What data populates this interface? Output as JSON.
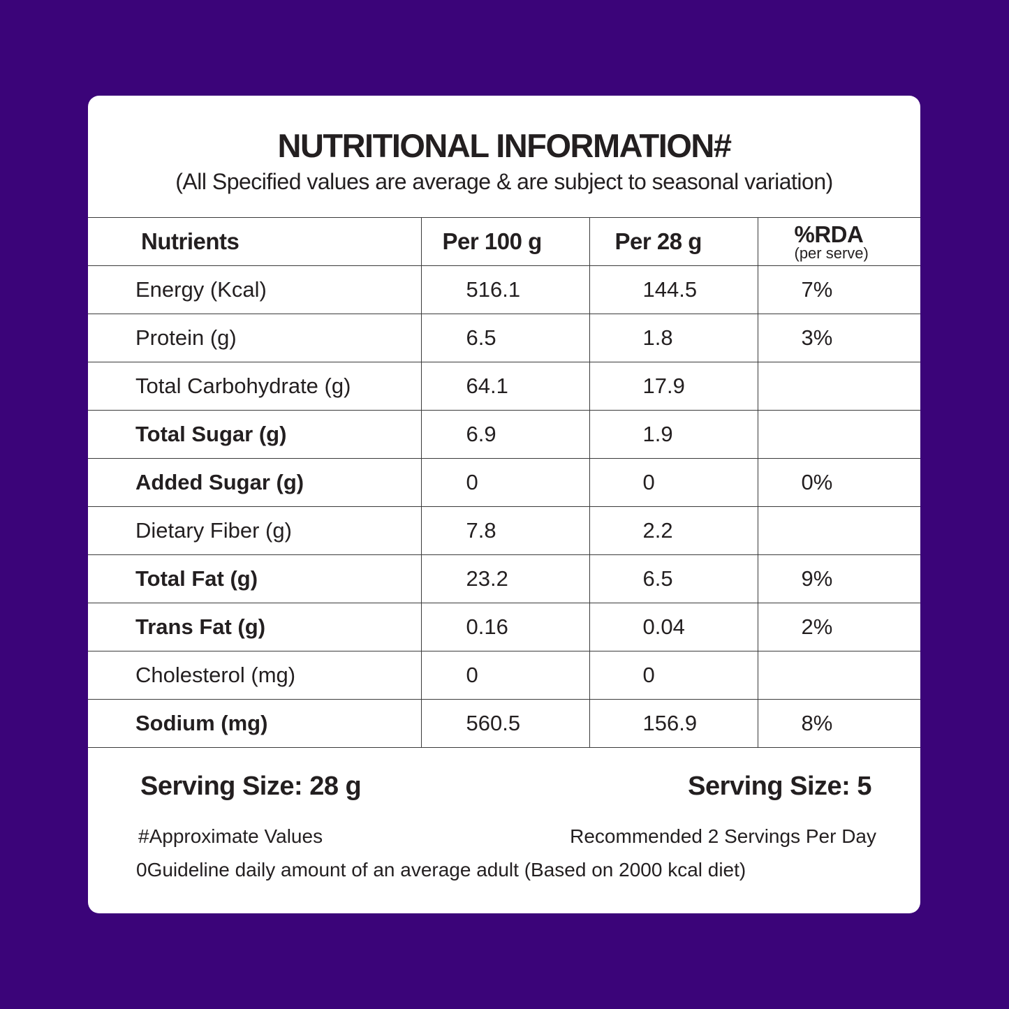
{
  "header": {
    "title": "NUTRITIONAL INFORMATION#",
    "subtitle": "(All Specified values are average & are subject to seasonal variation)"
  },
  "table": {
    "headers": {
      "nutrients": "Nutrients",
      "per100": "Per 100 g",
      "per28": "Per 28 g",
      "rda": "%RDA",
      "rda_sub": "(per serve)"
    },
    "rows": [
      {
        "name": "Energy (Kcal)",
        "per100": "516.1",
        "per28": "144.5",
        "rda": "7%",
        "bold": false
      },
      {
        "name": "Protein (g)",
        "per100": "6.5",
        "per28": "1.8",
        "rda": "3%",
        "bold": false
      },
      {
        "name": "Total Carbohydrate (g)",
        "per100": "64.1",
        "per28": "17.9",
        "rda": "",
        "bold": false
      },
      {
        "name": "Total Sugar (g)",
        "per100": "6.9",
        "per28": "1.9",
        "rda": "",
        "bold": true
      },
      {
        "name": "Added Sugar (g)",
        "per100": "0",
        "per28": "0",
        "rda": "0%",
        "bold": true
      },
      {
        "name": "Dietary Fiber (g)",
        "per100": "7.8",
        "per28": "2.2",
        "rda": "",
        "bold": false
      },
      {
        "name": "Total Fat (g)",
        "per100": "23.2",
        "per28": "6.5",
        "rda": "9%",
        "bold": true
      },
      {
        "name": "Trans Fat (g)",
        "per100": "0.16",
        "per28": "0.04",
        "rda": "2%",
        "bold": true
      },
      {
        "name": "Cholesterol (mg)",
        "per100": "0",
        "per28": "0",
        "rda": "",
        "bold": false
      },
      {
        "name": "Sodium (mg)",
        "per100": "560.5",
        "per28": "156.9",
        "rda": "8%",
        "bold": true
      }
    ]
  },
  "footer": {
    "serving_size_left": "Serving Size: 28 g",
    "serving_size_right": "Serving Size: 5",
    "approx": "#Approximate Values",
    "recommended": "Recommended 2 Servings Per Day",
    "guideline": "0Guideline daily amount of an average adult (Based on 2000 kcal diet)"
  },
  "colors": {
    "background": "#3b0479",
    "card": "#ffffff",
    "text": "#231f20"
  }
}
